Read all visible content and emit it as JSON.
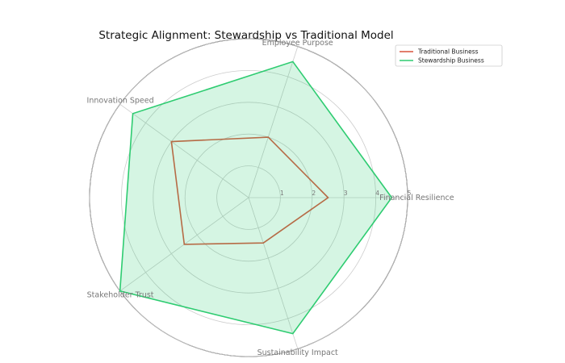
{
  "chart_data": {
    "type": "radar",
    "title": "Strategic Alignment: Stewardship vs Traditional Model",
    "axes": [
      "Financial Resilience",
      "Employee Purpose",
      "Innovation Speed",
      "Stakeholder Trust",
      "Sustainability Impact"
    ],
    "rlim": [
      0,
      5
    ],
    "rticks": [
      1,
      2,
      3,
      4,
      5
    ],
    "rtick_labels": [
      "1",
      "2",
      "3",
      "4",
      "5"
    ],
    "grid": true,
    "legend_position": "top-right",
    "series": [
      {
        "name": "Traditional Business",
        "values": [
          2.5,
          2.0,
          3.0,
          2.5,
          1.5
        ],
        "color": "#d9533b",
        "fill": false
      },
      {
        "name": "Stewardship Business",
        "values": [
          4.5,
          4.5,
          4.5,
          5.0,
          4.5
        ],
        "color": "#2ecc71",
        "fill": true
      }
    ]
  }
}
